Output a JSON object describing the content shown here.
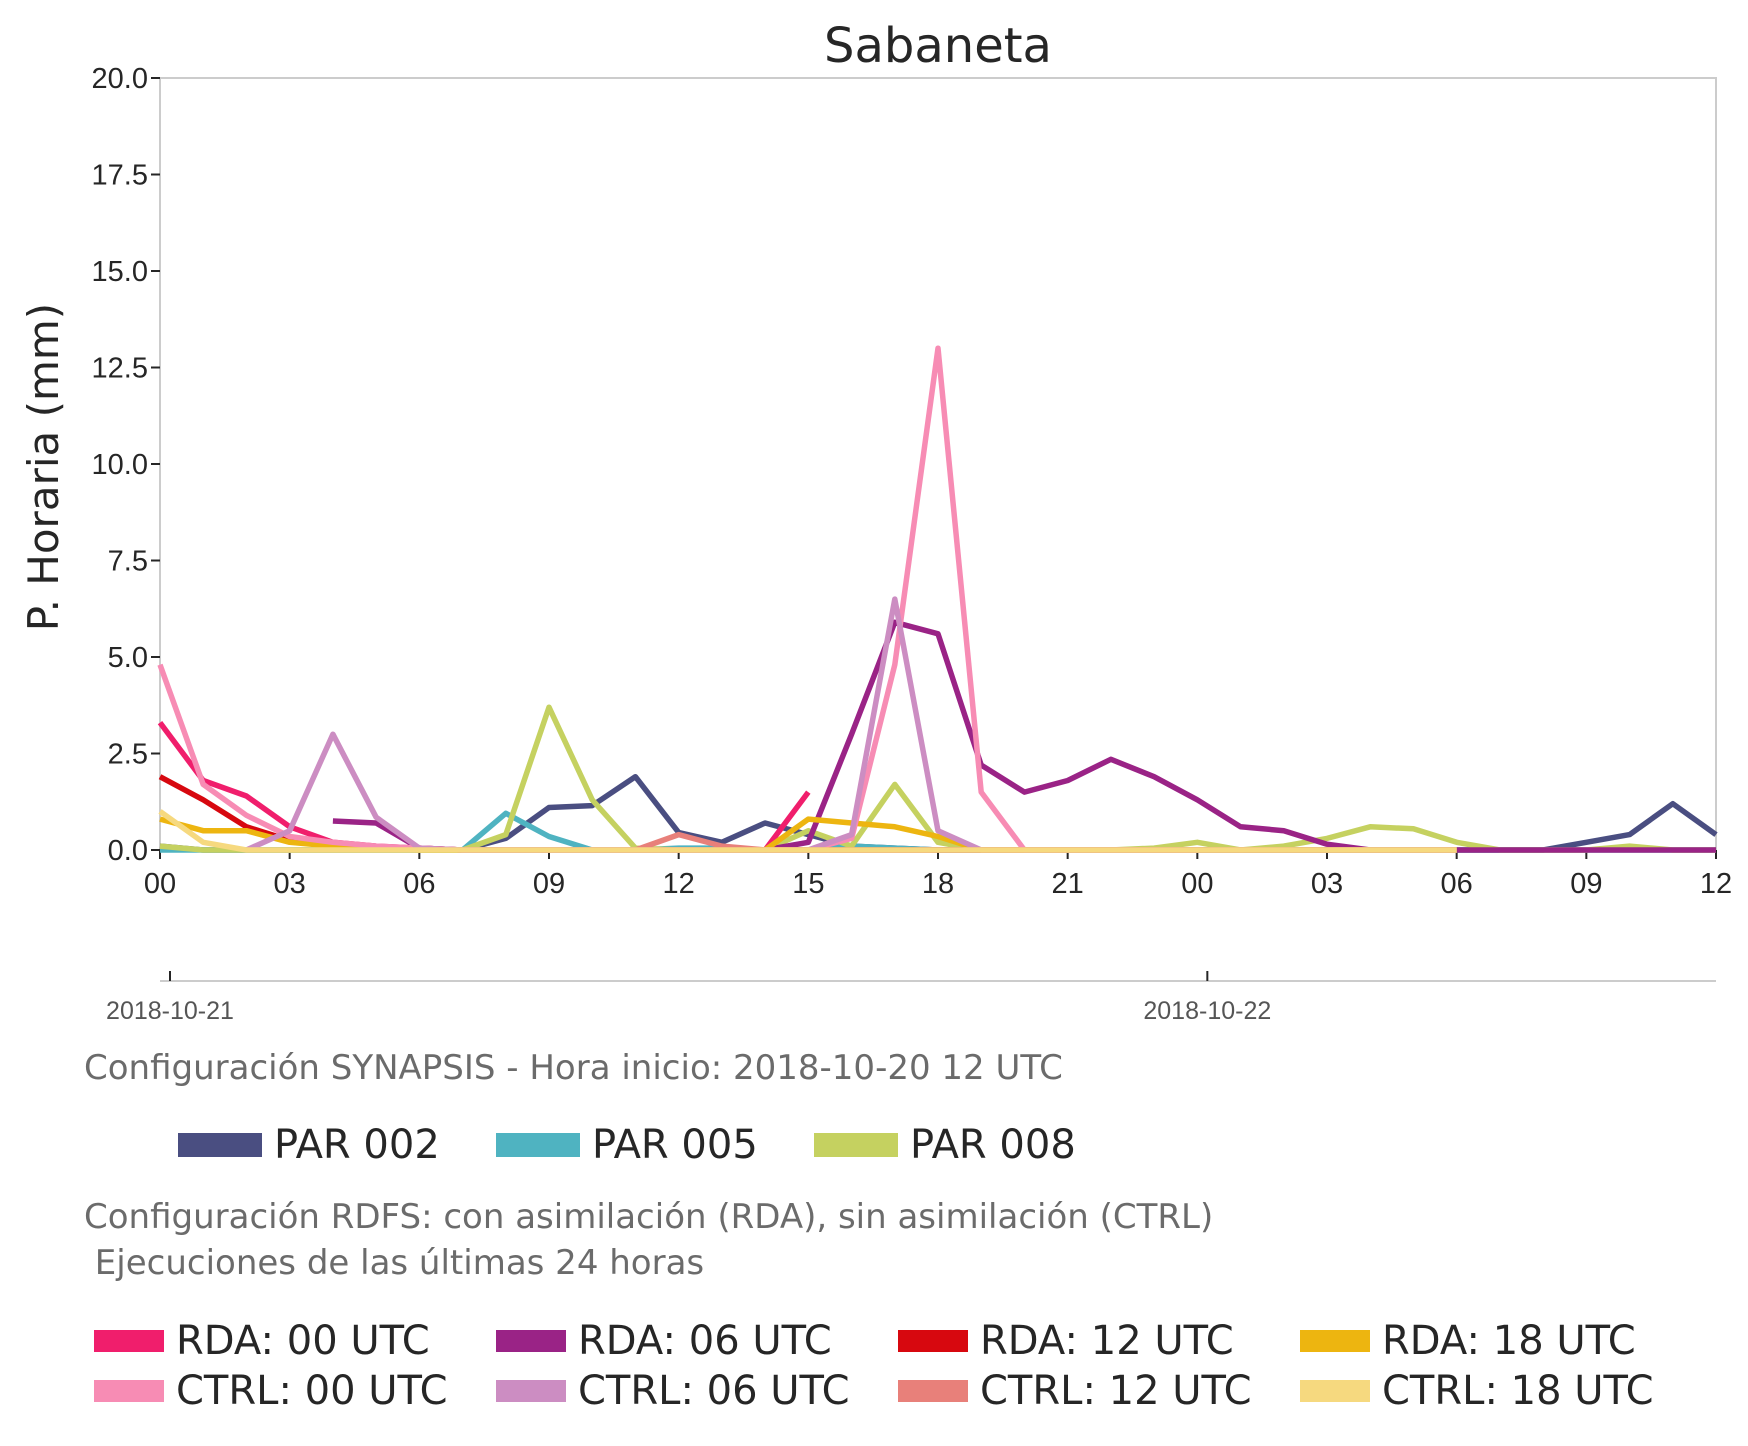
{
  "chart_data": {
    "type": "line",
    "title": "Sabaneta",
    "ylabel": "P. Horaria (mm)",
    "xlabel": "",
    "ylim": [
      0,
      20
    ],
    "yticks": [
      "0.0",
      "2.5",
      "5.0",
      "7.5",
      "10.0",
      "12.5",
      "15.0",
      "17.5",
      "20.0"
    ],
    "x_hours_count": 37,
    "xtick_labels": [
      "00",
      "03",
      "06",
      "09",
      "12",
      "15",
      "18",
      "21",
      "00",
      "03",
      "06",
      "09",
      "12"
    ],
    "date_labels": [
      "2018-10-21",
      "2018-10-22"
    ],
    "grid": false,
    "series": [
      {
        "name": "PAR 002",
        "color": "#4a4e81",
        "values": [
          0.1,
          0,
          0,
          0,
          0,
          0,
          0,
          0,
          0.3,
          1.1,
          1.15,
          1.9,
          0.45,
          0.2,
          0.7,
          0.4,
          0.1,
          0.05,
          0,
          0,
          0,
          0,
          0,
          0,
          0,
          0,
          0,
          0,
          0,
          0,
          0,
          0,
          0,
          0.2,
          0.4,
          1.2,
          0.4
        ]
      },
      {
        "name": "PAR 005",
        "color": "#4fb3c1",
        "values": [
          0,
          0,
          0,
          0,
          0,
          0,
          0,
          0,
          0.95,
          0.35,
          0,
          0,
          0.05,
          0.05,
          0,
          0,
          0.1,
          0.05,
          0,
          0,
          0,
          0,
          0,
          0,
          0,
          0,
          0,
          0,
          0,
          0,
          0,
          0,
          0,
          0,
          0,
          0,
          0
        ]
      },
      {
        "name": "PAR 008",
        "color": "#c5d160",
        "values": [
          0.1,
          0,
          0,
          0,
          0,
          0,
          0,
          0,
          0.4,
          3.7,
          1.3,
          0.05,
          0,
          0,
          0,
          0.5,
          0.1,
          1.7,
          0.2,
          0,
          0,
          0,
          0,
          0.05,
          0.2,
          0,
          0.1,
          0.3,
          0.6,
          0.55,
          0.2,
          0,
          0,
          0,
          0.1,
          0,
          0
        ]
      },
      {
        "name": "RDA: 00 UTC",
        "color": "#f01e6c",
        "values": [
          3.3,
          1.8,
          1.4,
          0.6,
          0.2,
          0.1,
          0.05,
          0,
          0,
          0,
          0,
          0,
          0,
          0,
          0,
          1.5,
          null,
          null,
          null,
          null,
          null,
          null,
          null,
          null,
          null,
          null,
          null,
          null,
          null,
          null,
          null,
          null,
          null,
          null,
          null,
          null,
          null
        ]
      },
      {
        "name": "RDA: 06 UTC",
        "color": "#9a2386",
        "values": [
          null,
          null,
          null,
          null,
          0.75,
          0.7,
          0.05,
          0,
          0,
          0,
          0,
          0,
          0,
          0,
          0,
          0.2,
          3.0,
          5.9,
          5.6,
          2.2,
          1.5,
          1.8,
          2.35,
          1.9,
          1.3,
          0.6,
          0.5,
          0.15,
          0,
          0,
          0,
          0,
          0,
          0,
          0,
          0,
          0
        ]
      },
      {
        "name": "RDA: 12 UTC",
        "color": "#d7080f",
        "values": [
          1.9,
          1.3,
          0.6,
          0.25,
          0.1,
          0.05,
          0.05,
          0,
          0,
          0,
          0,
          0,
          0,
          0,
          0,
          0,
          0,
          0,
          0,
          0,
          0,
          0,
          0,
          0,
          0,
          null,
          null,
          null,
          null,
          null,
          null,
          null,
          null,
          null,
          null,
          null,
          null
        ]
      },
      {
        "name": "RDA: 18 UTC",
        "color": "#edb510",
        "values": [
          0.8,
          0.5,
          0.5,
          0.2,
          0.1,
          0.05,
          0,
          0,
          0,
          0,
          0,
          0,
          0,
          0,
          0,
          0.8,
          0.7,
          0.6,
          0.35,
          0,
          0,
          0,
          0,
          0,
          0,
          0,
          0,
          0,
          0,
          0,
          0,
          null,
          null,
          null,
          null,
          null,
          null
        ]
      },
      {
        "name": "CTRL: 00 UTC",
        "color": "#f78cb4",
        "values": [
          4.8,
          1.7,
          0.9,
          0.35,
          0.2,
          0.1,
          0.05,
          0,
          0,
          0,
          0,
          0,
          0,
          0,
          0,
          0,
          0.3,
          4.8,
          13.0,
          1.5,
          0,
          0,
          0,
          0,
          0,
          null,
          null,
          null,
          null,
          null,
          null,
          null,
          null,
          null,
          null,
          null,
          null
        ]
      },
      {
        "name": "CTRL: 06 UTC",
        "color": "#cc8dc2",
        "values": [
          null,
          null,
          0,
          0.5,
          3.0,
          0.85,
          0.05,
          0,
          0,
          0,
          0,
          0,
          0,
          0,
          0,
          0,
          0.4,
          6.5,
          0.5,
          0,
          0,
          0,
          0,
          0,
          0,
          0,
          0,
          0,
          0,
          0,
          0,
          null,
          null,
          null,
          null,
          null,
          null
        ]
      },
      {
        "name": "CTRL: 12 UTC",
        "color": "#e8807a",
        "values": [
          null,
          null,
          null,
          null,
          null,
          null,
          null,
          null,
          null,
          null,
          null,
          0,
          0.4,
          0.1,
          0,
          0,
          0,
          0,
          0,
          0,
          0,
          0,
          0,
          0,
          0,
          0,
          0,
          0,
          0,
          0,
          0,
          null,
          null,
          null,
          null,
          null,
          null
        ]
      },
      {
        "name": "CTRL: 18 UTC",
        "color": "#f6d97f",
        "values": [
          1.0,
          0.2,
          0,
          0,
          0,
          0,
          0,
          0,
          0,
          0,
          0,
          0,
          0,
          0,
          0,
          0,
          0,
          0,
          0,
          0,
          0,
          0,
          0,
          0,
          0,
          0,
          0,
          0,
          0,
          0,
          0,
          null,
          null,
          null,
          null,
          null,
          null
        ]
      }
    ]
  },
  "captions": {
    "synapsis": "Configuración SYNAPSIS - Hora inicio: 2018-10-20 12 UTC",
    "rdfs_line1": "Configuración RDFS: con asimilación (RDA), sin asimilación (CTRL)",
    "rdfs_line2": " Ejecuciones de las últimas 24 horas"
  },
  "legend_synapsis": [
    {
      "label": "PAR 002",
      "color": "#4a4e81"
    },
    {
      "label": "PAR 005",
      "color": "#4fb3c1"
    },
    {
      "label": "PAR 008",
      "color": "#c5d160"
    }
  ],
  "legend_rdfs": [
    {
      "label": "RDA: 00 UTC",
      "color": "#f01e6c"
    },
    {
      "label": "RDA: 06 UTC",
      "color": "#9a2386"
    },
    {
      "label": "RDA: 12 UTC",
      "color": "#d7080f"
    },
    {
      "label": "RDA: 18 UTC",
      "color": "#edb510"
    },
    {
      "label": "CTRL: 00 UTC",
      "color": "#f78cb4"
    },
    {
      "label": "CTRL: 06 UTC",
      "color": "#cc8dc2"
    },
    {
      "label": "CTRL: 12 UTC",
      "color": "#e8807a"
    },
    {
      "label": "CTRL: 18 UTC",
      "color": "#f6d97f"
    }
  ]
}
